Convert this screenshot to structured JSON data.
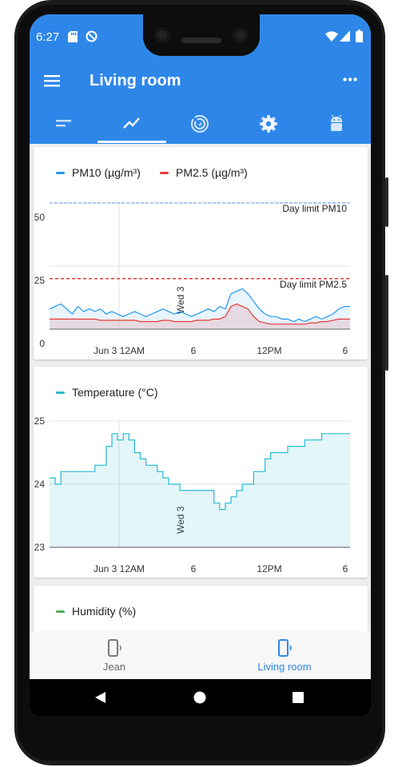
{
  "status_bar": {
    "time": "6:27"
  },
  "app_bar": {
    "title": "Living room",
    "menu_icon": "hamburger-menu-icon",
    "overflow_icon": "more-horizontal-icon"
  },
  "tabs": [
    {
      "icon": "list-lines-icon",
      "selected": false
    },
    {
      "icon": "trending-up-icon",
      "selected": true
    },
    {
      "icon": "radar-signal-icon",
      "selected": false
    },
    {
      "icon": "gear-icon",
      "selected": false
    },
    {
      "icon": "android-icon",
      "selected": false
    }
  ],
  "colors": {
    "primary": "#2e87e8",
    "pm10": "#2196f3",
    "pm25": "#e53935",
    "temperature": "#26b8d3",
    "humidity": "#4caf50"
  },
  "charts": {
    "pm": {
      "legend": {
        "pm10": "PM10 (µg/m³)",
        "pm25": "PM2.5 (µg/m³)"
      },
      "limits": {
        "pm10": "Day limit PM10",
        "pm25": "Day limit PM2.5"
      },
      "day_marker": "Wed 3",
      "yticks": [
        "50",
        "25",
        "0"
      ],
      "xticks": [
        "Jun 3 12AM",
        "6",
        "12PM",
        "6"
      ]
    },
    "temperature": {
      "legend": "Temperature (°C)",
      "day_marker": "Wed 3",
      "yticks": [
        "25",
        "24",
        "23"
      ],
      "xticks": [
        "Jun 3 12AM",
        "6",
        "12PM",
        "6"
      ]
    },
    "humidity": {
      "legend": "Humidity (%)"
    }
  },
  "chart_data": [
    {
      "type": "line",
      "title": "",
      "ylim": [
        0,
        50
      ],
      "x_range_hours": [
        -20,
        33
      ],
      "limits": {
        "pm10": 50,
        "pm25": 20
      },
      "series": [
        {
          "name": "PM10 (µg/m³)",
          "x": [
            -20,
            -19,
            -18,
            -17,
            -16,
            -15,
            -14,
            -13,
            -12,
            -11,
            -10,
            -9,
            -8,
            -7,
            -6,
            -5,
            -4,
            -3,
            -2,
            -1,
            0,
            1,
            2,
            3,
            4,
            5,
            6,
            7,
            8,
            9,
            10,
            11,
            12,
            13,
            14,
            15,
            16,
            17,
            18,
            19,
            20,
            21,
            22,
            23,
            24,
            25,
            26,
            27,
            28,
            29,
            30,
            31,
            32,
            33
          ],
          "values": [
            8,
            9,
            10,
            8,
            6,
            9,
            7,
            8,
            7,
            8,
            6,
            7,
            6,
            5,
            6,
            7,
            6,
            5,
            6,
            7,
            8,
            7,
            6,
            7,
            6,
            5,
            6,
            7,
            8,
            7,
            9,
            8,
            14,
            15,
            16,
            14,
            11,
            8,
            6,
            5,
            5,
            4,
            4,
            3,
            4,
            3,
            4,
            5,
            4,
            5,
            6,
            8,
            9,
            9
          ]
        },
        {
          "name": "PM2.5 (µg/m³)",
          "x": [
            -20,
            -19,
            -18,
            -17,
            -16,
            -15,
            -14,
            -13,
            -12,
            -11,
            -10,
            -9,
            -8,
            -7,
            -6,
            -5,
            -4,
            -3,
            -2,
            -1,
            0,
            1,
            2,
            3,
            4,
            5,
            6,
            7,
            8,
            9,
            10,
            11,
            12,
            13,
            14,
            15,
            16,
            17,
            18,
            19,
            20,
            21,
            22,
            23,
            24,
            25,
            26,
            27,
            28,
            29,
            30,
            31,
            32,
            33
          ],
          "values": [
            4,
            4,
            4,
            4,
            4,
            4,
            4,
            4,
            4,
            3.5,
            3.5,
            3.5,
            3.5,
            3.5,
            3.5,
            3.5,
            3,
            3,
            3,
            3,
            3.5,
            3.5,
            3,
            3,
            3,
            3,
            3.5,
            3.5,
            3.5,
            4,
            4,
            5,
            9,
            10,
            9,
            8,
            5,
            3,
            2.5,
            2,
            2,
            2,
            2,
            2,
            2,
            2,
            2.5,
            2.5,
            3,
            3,
            3.5,
            4,
            4,
            4
          ]
        }
      ]
    },
    {
      "type": "area",
      "title": "",
      "ylim": [
        23,
        25
      ],
      "x_range_hours": [
        -20,
        33
      ],
      "series": [
        {
          "name": "Temperature (°C)",
          "x": [
            -20,
            -19,
            -18,
            -17,
            -16,
            -15,
            -14,
            -13,
            -12,
            -11,
            -10,
            -9,
            -8,
            -7,
            -6,
            -5,
            -4,
            -3,
            -2,
            -1,
            0,
            1,
            2,
            3,
            4,
            5,
            6,
            7,
            8,
            9,
            10,
            11,
            12,
            13,
            14,
            15,
            16,
            17,
            18,
            19,
            20,
            21,
            22,
            23,
            24,
            25,
            26,
            27,
            28,
            29,
            30,
            31,
            32,
            33
          ],
          "values": [
            24.1,
            24.0,
            24.2,
            24.2,
            24.2,
            24.2,
            24.2,
            24.2,
            24.3,
            24.3,
            24.6,
            24.8,
            24.7,
            24.8,
            24.7,
            24.5,
            24.4,
            24.3,
            24.3,
            24.2,
            24.1,
            24.0,
            24.0,
            23.9,
            23.9,
            23.9,
            23.9,
            23.9,
            23.9,
            23.7,
            23.6,
            23.7,
            23.8,
            23.9,
            24.0,
            24.0,
            24.2,
            24.2,
            24.4,
            24.5,
            24.5,
            24.5,
            24.6,
            24.6,
            24.6,
            24.7,
            24.7,
            24.7,
            24.8,
            24.8,
            24.8,
            24.8,
            24.8,
            24.8
          ]
        }
      ]
    }
  ],
  "bottom_nav": [
    {
      "label": "Jean",
      "icon": "phone-vibrate-icon",
      "selected": false
    },
    {
      "label": "Living room",
      "icon": "phone-vibrate-icon",
      "selected": true
    }
  ],
  "system_nav": {
    "back": "back-triangle-icon",
    "home": "home-circle-icon",
    "recents": "recents-square-icon"
  }
}
